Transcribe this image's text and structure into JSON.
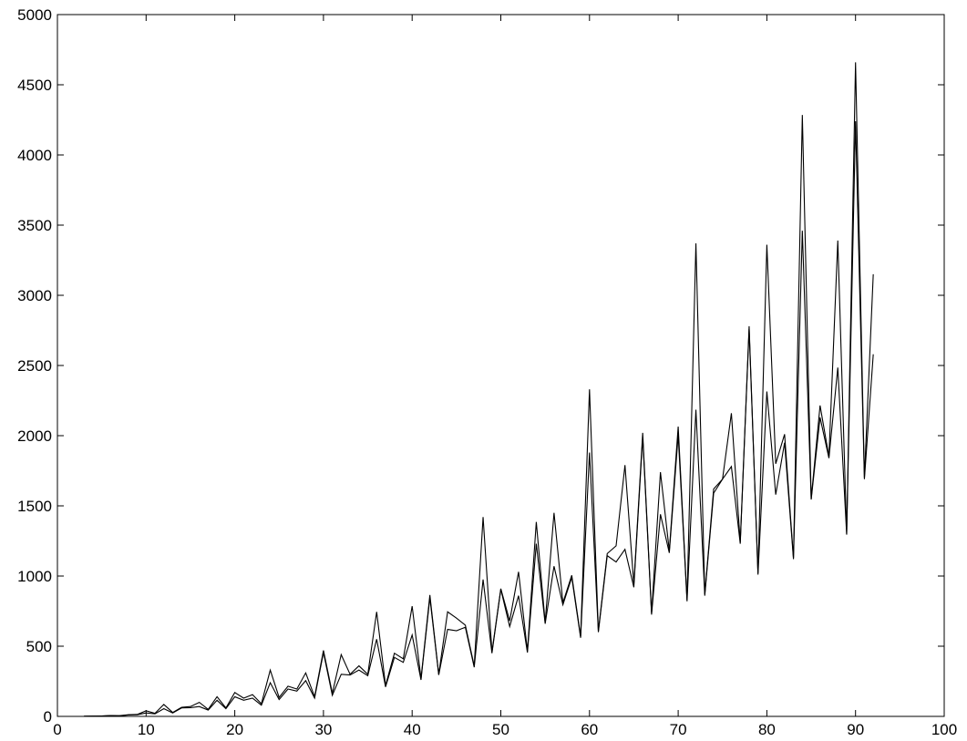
{
  "chart_data": {
    "type": "line",
    "title": "",
    "xlabel": "",
    "ylabel": "",
    "xlim": [
      0,
      100
    ],
    "ylim": [
      0,
      5000
    ],
    "xticks": [
      0,
      10,
      20,
      30,
      40,
      50,
      60,
      70,
      80,
      90,
      100
    ],
    "yticks": [
      0,
      500,
      1000,
      1500,
      2000,
      2500,
      3000,
      3500,
      4000,
      4500,
      5000
    ],
    "grid": false,
    "line_color": "#000000",
    "x": [
      3,
      4,
      5,
      6,
      7,
      8,
      9,
      10,
      11,
      12,
      13,
      14,
      15,
      16,
      17,
      18,
      19,
      20,
      21,
      22,
      23,
      24,
      25,
      26,
      27,
      28,
      29,
      30,
      31,
      32,
      33,
      34,
      35,
      36,
      37,
      38,
      39,
      40,
      41,
      42,
      43,
      44,
      45,
      46,
      47,
      48,
      49,
      50,
      51,
      52,
      53,
      54,
      55,
      56,
      57,
      58,
      59,
      60,
      61,
      62,
      63,
      64,
      65,
      66,
      67,
      68,
      69,
      70,
      71,
      72,
      73,
      74,
      75,
      76,
      77,
      78,
      79,
      80,
      81,
      82,
      83,
      84,
      85,
      86,
      87,
      88,
      89,
      90,
      91,
      92
    ],
    "series": [
      {
        "values": [
          1,
          2,
          3,
          6,
          5,
          12,
          14,
          40,
          22,
          85,
          28,
          65,
          70,
          100,
          50,
          140,
          60,
          170,
          130,
          155,
          90,
          330,
          135,
          215,
          195,
          310,
          140,
          470,
          165,
          440,
          300,
          360,
          300,
          745,
          220,
          450,
          410,
          785,
          270,
          865,
          300,
          745,
          700,
          650,
          360,
          1420,
          460,
          910,
          680,
          1030,
          465,
          1385,
          670,
          1450,
          810,
          1005,
          570,
          2330,
          610,
          1160,
          1215,
          1790,
          940,
          2020,
          735,
          1740,
          1180,
          2065,
          830,
          3370,
          870,
          1620,
          1690,
          2160,
          1240,
          2780,
          1020,
          3360,
          1800,
          2010,
          1130,
          4285,
          1550,
          2215,
          1850,
          3390,
          1300,
          4660,
          1700,
          3150
        ]
      },
      {
        "values": [
          1,
          2,
          3,
          5,
          4,
          10,
          12,
          25,
          18,
          55,
          24,
          60,
          62,
          70,
          45,
          115,
          55,
          140,
          115,
          130,
          80,
          240,
          120,
          195,
          180,
          255,
          130,
          455,
          150,
          300,
          295,
          330,
          290,
          550,
          210,
          420,
          385,
          580,
          260,
          845,
          295,
          620,
          610,
          635,
          350,
          975,
          450,
          905,
          640,
          860,
          455,
          1230,
          660,
          1070,
          795,
          990,
          560,
          1880,
          600,
          1145,
          1100,
          1190,
          920,
          1990,
          725,
          1440,
          1165,
          2005,
          820,
          2185,
          860,
          1590,
          1690,
          1780,
          1230,
          2760,
          1010,
          2315,
          1580,
          1950,
          1120,
          3460,
          1545,
          2130,
          1840,
          2485,
          1295,
          4240,
          1690,
          2580
        ]
      }
    ]
  }
}
